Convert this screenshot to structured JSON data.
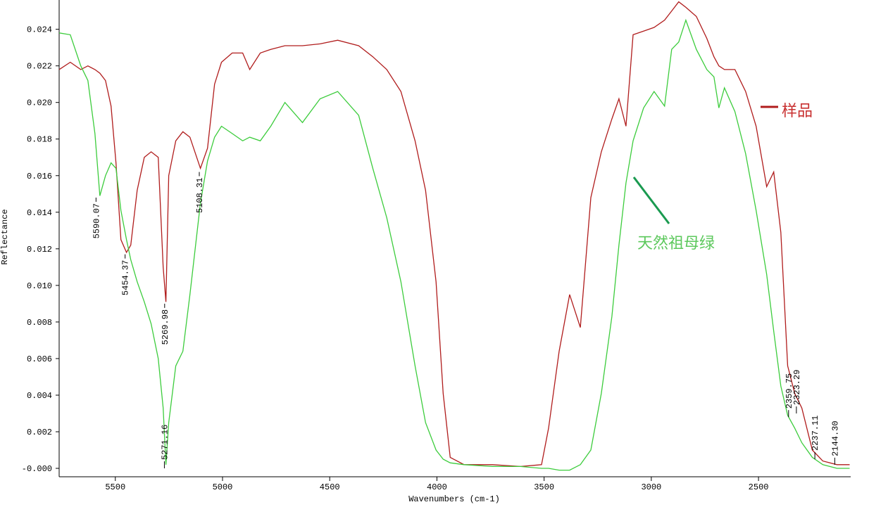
{
  "chart_data": {
    "type": "line",
    "x_label": "Wavenumbers (cm-1)",
    "y_label": "Reflectance",
    "xlim": [
      5762,
      2070
    ],
    "ylim": [
      -0.00046,
      0.0256
    ],
    "xticks": [
      5500,
      5000,
      4500,
      4000,
      3500,
      3000,
      2500
    ],
    "yticks": [
      {
        "value": 0,
        "label": "-0.000"
      },
      {
        "value": 0.002,
        "label": "0.002"
      },
      {
        "value": 0.004,
        "label": "0.004"
      },
      {
        "value": 0.006,
        "label": "0.006"
      },
      {
        "value": 0.008,
        "label": "0.008"
      },
      {
        "value": 0.01,
        "label": "0.010"
      },
      {
        "value": 0.012,
        "label": "0.012"
      },
      {
        "value": 0.014,
        "label": "0.014"
      },
      {
        "value": 0.016,
        "label": "0.016"
      },
      {
        "value": 0.018,
        "label": "0.018"
      },
      {
        "value": 0.02,
        "label": "0.020"
      },
      {
        "value": 0.022,
        "label": "0.022"
      },
      {
        "value": 0.024,
        "label": "0.024"
      }
    ],
    "x": [
      5762,
      5710,
      5661,
      5628,
      5595,
      5572,
      5546,
      5520,
      5497,
      5474,
      5448,
      5428,
      5398,
      5365,
      5333,
      5300,
      5277,
      5264,
      5251,
      5218,
      5185,
      5152,
      5103,
      5070,
      5037,
      5005,
      4955,
      4906,
      4873,
      4824,
      4775,
      4709,
      4627,
      4545,
      4463,
      4365,
      4299,
      4234,
      4168,
      4102,
      4053,
      4004,
      3971,
      3938,
      3873,
      3741,
      3610,
      3512,
      3479,
      3430,
      3381,
      3331,
      3282,
      3233,
      3184,
      3151,
      3118,
      3085,
      3036,
      2987,
      2938,
      2905,
      2872,
      2839,
      2790,
      2741,
      2708,
      2685,
      2659,
      2610,
      2560,
      2511,
      2462,
      2429,
      2396,
      2364,
      2331,
      2298,
      2249,
      2200,
      2134,
      2075
    ],
    "series": [
      {
        "name": "样品",
        "color": "#b01c1c",
        "values": [
          0.0218,
          0.0222,
          0.0218,
          0.022,
          0.0218,
          0.0216,
          0.0212,
          0.0198,
          0.0167,
          0.0125,
          0.0118,
          0.0122,
          0.0152,
          0.017,
          0.0173,
          0.017,
          0.011,
          0.0091,
          0.016,
          0.0179,
          0.0184,
          0.0181,
          0.0164,
          0.0175,
          0.021,
          0.0222,
          0.0227,
          0.0227,
          0.0218,
          0.0227,
          0.0229,
          0.0231,
          0.0231,
          0.0232,
          0.0234,
          0.0231,
          0.0225,
          0.0218,
          0.0206,
          0.0179,
          0.0152,
          0.0102,
          0.0041,
          0.0006,
          0.0002,
          0.0002,
          0.0001,
          0.0002,
          0.0022,
          0.0064,
          0.0095,
          0.0077,
          0.0148,
          0.0173,
          0.0191,
          0.0202,
          0.0187,
          0.0237,
          0.0239,
          0.0241,
          0.0245,
          0.025,
          0.0255,
          0.0252,
          0.0247,
          0.0235,
          0.0225,
          0.022,
          0.0218,
          0.0218,
          0.0206,
          0.0187,
          0.0154,
          0.0162,
          0.0129,
          0.0056,
          0.0041,
          0.0033,
          0.001,
          0.0004,
          0.0002,
          0.0002
        ]
      },
      {
        "name": "天然祖母绿",
        "color": "#3ccc3c",
        "values": [
          0.0238,
          0.0237,
          0.022,
          0.0212,
          0.0183,
          0.0149,
          0.016,
          0.0167,
          0.0164,
          0.0141,
          0.0125,
          0.0114,
          0.0102,
          0.0091,
          0.0079,
          0.006,
          0.0033,
          0.0002,
          0.0025,
          0.0056,
          0.0064,
          0.0095,
          0.0145,
          0.0168,
          0.0181,
          0.0187,
          0.0183,
          0.0179,
          0.0181,
          0.0179,
          0.0187,
          0.02,
          0.0189,
          0.0202,
          0.0206,
          0.0193,
          0.0164,
          0.0137,
          0.0102,
          0.0056,
          0.0025,
          0.001,
          0.0005,
          0.0003,
          0.0002,
          0.0001,
          0.0001,
          0.0,
          0.0,
          -0.0001,
          -0.0001,
          0.0002,
          0.001,
          0.0041,
          0.0083,
          0.0122,
          0.0156,
          0.0179,
          0.0197,
          0.0206,
          0.0198,
          0.0229,
          0.0233,
          0.0245,
          0.0229,
          0.0218,
          0.0214,
          0.0197,
          0.0208,
          0.0195,
          0.0172,
          0.0141,
          0.0106,
          0.0075,
          0.0045,
          0.0029,
          0.0022,
          0.0014,
          0.0006,
          0.0002,
          0.0,
          0.0
        ]
      }
    ],
    "peaks": [
      {
        "label": "5590.07",
        "x": 5590.07,
        "y": 0.0148
      },
      {
        "label": "5454.37",
        "x": 5454.37,
        "y": 0.0117
      },
      {
        "label": "5269.98",
        "x": 5269.98,
        "y": 0.009
      },
      {
        "label": "5271.16",
        "x": 5271.16,
        "y": 0.0
      },
      {
        "label": "5108.31",
        "x": 5108.31,
        "y": 0.0162
      },
      {
        "label": "2359.75",
        "x": 2359.75,
        "y": 0.0028
      },
      {
        "label": "2323.29",
        "x": 2323.29,
        "y": 0.003
      },
      {
        "label": "2237.11",
        "x": 2237.11,
        "y": 0.0005
      },
      {
        "label": "2144.30",
        "x": 2144.3,
        "y": 0.0002
      }
    ]
  }
}
